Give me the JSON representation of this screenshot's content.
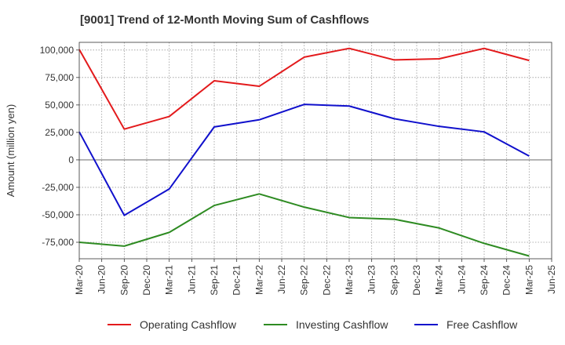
{
  "chart_data": {
    "type": "line",
    "title": "[9001]  Trend of 12-Month Moving Sum of Cashflows",
    "xlabel": "",
    "ylabel": "Amount (million yen)",
    "ylim": [
      -90000,
      107000
    ],
    "yticks": [
      -75000,
      -50000,
      -25000,
      0,
      25000,
      50000,
      75000,
      100000
    ],
    "ytick_labels": [
      "-75,000",
      "-50,000",
      "-25,000",
      "0",
      "25,000",
      "50,000",
      "75,000",
      "100,000"
    ],
    "x": [
      "Mar-20",
      "Sep-20",
      "Mar-21",
      "Sep-21",
      "Mar-22",
      "Sep-22",
      "Mar-23",
      "Sep-23",
      "Mar-24",
      "Sep-24",
      "Mar-25"
    ],
    "xtick_labels": [
      "Mar-20",
      "Jun-20",
      "Sep-20",
      "Dec-20",
      "Mar-21",
      "Jun-21",
      "Sep-21",
      "Dec-21",
      "Mar-22",
      "Jun-22",
      "Sep-22",
      "Dec-22",
      "Mar-23",
      "Jun-23",
      "Sep-23",
      "Dec-23",
      "Mar-24",
      "Jun-24",
      "Sep-24",
      "Dec-24",
      "Mar-25",
      "Jun-25"
    ],
    "grid": true,
    "legend_position": "bottom",
    "series": [
      {
        "name": "Operating Cashflow",
        "color": "#e31a1c",
        "values": [
          100500,
          28000,
          39500,
          72000,
          67000,
          93500,
          101500,
          91000,
          92000,
          101500,
          90500
        ]
      },
      {
        "name": "Investing Cashflow",
        "color": "#2e8b22",
        "values": [
          -75000,
          -78500,
          -66000,
          -41500,
          -31000,
          -43000,
          -52500,
          -54000,
          -62000,
          -76000,
          -87500
        ]
      },
      {
        "name": "Free Cashflow",
        "color": "#1010cc",
        "values": [
          25500,
          -50500,
          -26500,
          30000,
          36500,
          50500,
          49000,
          37500,
          30500,
          25500,
          3500
        ]
      }
    ]
  }
}
